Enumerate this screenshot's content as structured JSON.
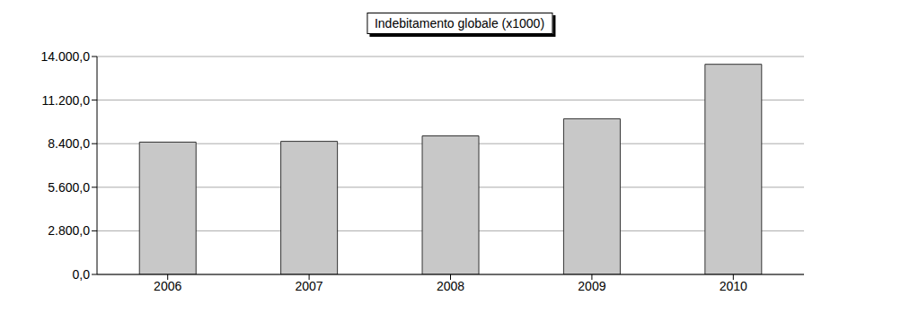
{
  "chart_data": {
    "type": "bar",
    "title": "Indebitamento globale (x1000)",
    "categories": [
      "2006",
      "2007",
      "2008",
      "2009",
      "2010"
    ],
    "values": [
      8500,
      8550,
      8900,
      10000,
      13500
    ],
    "color": "#c8c8c8",
    "ylim": [
      0,
      14000
    ],
    "yticks": [
      {
        "value": 0,
        "label": "0,0"
      },
      {
        "value": 2800,
        "label": "2.800,0"
      },
      {
        "value": 5600,
        "label": "5.600,0"
      },
      {
        "value": 8400,
        "label": "8.400,0"
      },
      {
        "value": 11200,
        "label": "11.200,0"
      },
      {
        "value": 14000,
        "label": "14.000,0"
      }
    ],
    "grid": true
  }
}
